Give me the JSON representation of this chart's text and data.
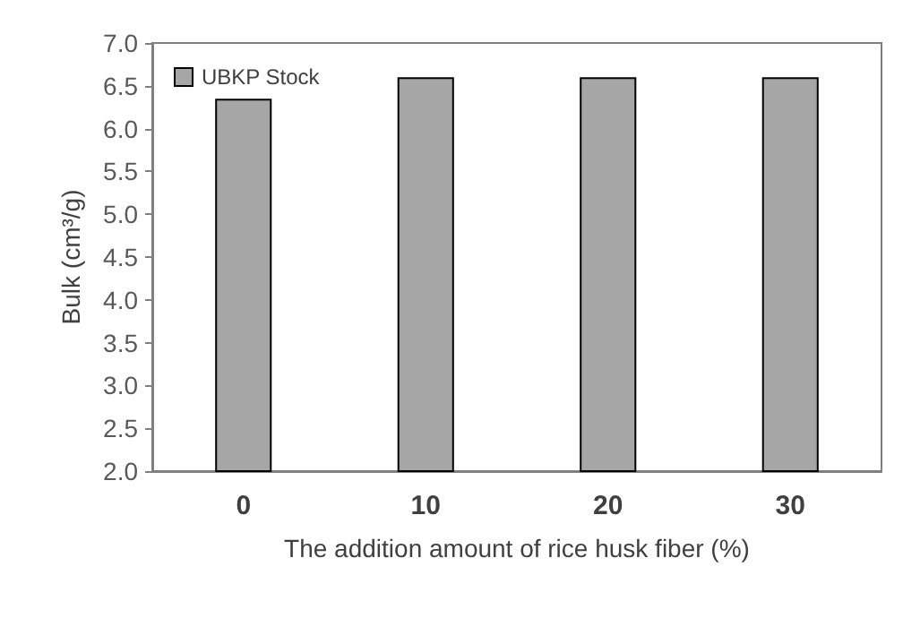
{
  "chart_data": {
    "type": "bar",
    "xlabel": "The addition amount of rice husk fiber (%)",
    "ylabel": "Bulk (cm³/g)",
    "categories": [
      "0",
      "10",
      "20",
      "30"
    ],
    "series": [
      {
        "name": "UBKP Stock",
        "color": "#a6a6a6",
        "values": [
          6.35,
          6.6,
          6.6,
          6.6
        ]
      }
    ],
    "ylim": [
      2.0,
      7.0
    ],
    "yticks": [
      {
        "value": 2,
        "label": "2.0"
      },
      {
        "value": 2.5,
        "label": "2.5"
      },
      {
        "value": 3,
        "label": "3.0"
      },
      {
        "value": 3.5,
        "label": "3.5"
      },
      {
        "value": 4,
        "label": "4.0"
      },
      {
        "value": 4.5,
        "label": "4.5"
      },
      {
        "value": 5,
        "label": "5.0"
      },
      {
        "value": 5.5,
        "label": "5.5"
      },
      {
        "value": 6,
        "label": "6.0"
      },
      {
        "value": 6.5,
        "label": "6.5"
      },
      {
        "value": 7,
        "label": "7.0"
      }
    ],
    "grid": false,
    "legend": "top left"
  }
}
